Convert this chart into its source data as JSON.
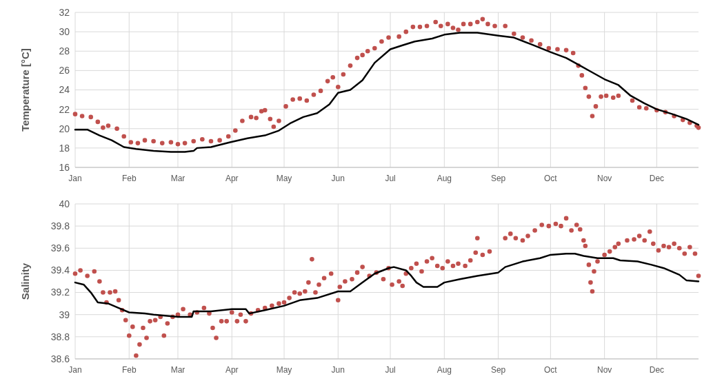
{
  "chart_data": [
    {
      "type": "scatter",
      "ylabel": "Temperature [°C]",
      "xlim": [
        "--01-01",
        "--12-25"
      ],
      "ylim": [
        16,
        32
      ],
      "yticks": [
        16,
        18,
        20,
        22,
        24,
        26,
        28,
        30,
        32
      ],
      "xticks": [
        {
          "value": "--01-01",
          "label": "Jan"
        },
        {
          "value": "--02-01",
          "label": "Feb"
        },
        {
          "value": "--03-01",
          "label": "Mar"
        },
        {
          "value": "--04-01",
          "label": "Apr"
        },
        {
          "value": "--05-01",
          "label": "May"
        },
        {
          "value": "--06-01",
          "label": "Jun"
        },
        {
          "value": "--07-01",
          "label": "Jul"
        },
        {
          "value": "--08-01",
          "label": "Aug"
        },
        {
          "value": "--09-01",
          "label": "Sep"
        },
        {
          "value": "--10-01",
          "label": "Oct"
        },
        {
          "value": "--11-01",
          "label": "Nov"
        },
        {
          "value": "--12-01",
          "label": "Dec"
        }
      ],
      "grid": true,
      "series": [
        {
          "marker": "circle",
          "color": "#c0504d",
          "x": [
            "--01-01",
            "--01-05",
            "--01-10",
            "--01-14",
            "--01-17",
            "--01-20",
            "--01-25",
            "--01-29",
            "--02-02",
            "--02-06",
            "--02-10",
            "--02-15",
            "--02-20",
            "--02-25",
            "--03-01",
            "--03-05",
            "--03-10",
            "--03-15",
            "--03-20",
            "--03-25",
            "--03-30",
            "--04-03",
            "--04-07",
            "--04-12",
            "--04-15",
            "--04-18",
            "--04-20",
            "--04-23",
            "--04-25",
            "--04-28",
            "--05-02",
            "--05-06",
            "--05-10",
            "--05-14",
            "--05-18",
            "--05-22",
            "--05-26",
            "--05-29",
            "--06-01",
            "--06-04",
            "--06-08",
            "--06-12",
            "--06-15",
            "--06-18",
            "--06-22",
            "--06-26",
            "--06-30",
            "--07-06",
            "--07-10",
            "--07-14",
            "--07-18",
            "--07-22",
            "--07-27",
            "--07-30",
            "--08-03",
            "--08-06",
            "--08-09",
            "--08-12",
            "--08-16",
            "--08-20",
            "--08-23",
            "--08-26",
            "--08-30",
            "--09-05",
            "--09-10",
            "--09-15",
            "--09-20",
            "--09-25",
            "--09-30",
            "--10-05",
            "--10-10",
            "--10-14",
            "--10-17",
            "--10-19",
            "--10-21",
            "--10-23",
            "--10-25",
            "--10-27",
            "--10-30",
            "--11-02",
            "--11-06",
            "--11-09",
            "--11-17",
            "--11-21",
            "--11-25",
            "--12-01",
            "--12-06",
            "--12-11",
            "--12-16",
            "--12-20",
            "--12-24",
            "--12-25"
          ],
          "values": [
            21.5,
            21.3,
            21.2,
            20.7,
            20.1,
            20.3,
            20.0,
            19.2,
            18.6,
            18.5,
            18.8,
            18.7,
            18.5,
            18.6,
            18.4,
            18.5,
            18.7,
            18.9,
            18.7,
            18.8,
            19.2,
            19.8,
            20.8,
            21.2,
            21.1,
            21.8,
            21.9,
            21.0,
            20.2,
            20.8,
            22.3,
            23.0,
            23.1,
            22.9,
            23.5,
            23.9,
            24.9,
            25.3,
            24.3,
            25.6,
            26.5,
            27.3,
            27.6,
            28.0,
            28.3,
            29.0,
            29.4,
            29.5,
            30.0,
            30.5,
            30.5,
            30.6,
            31.0,
            30.6,
            30.8,
            30.4,
            30.2,
            30.8,
            30.8,
            31.0,
            31.3,
            30.8,
            30.6,
            30.6,
            29.8,
            29.4,
            29.1,
            28.7,
            28.3,
            28.2,
            28.1,
            27.8,
            26.5,
            25.5,
            24.2,
            23.3,
            21.3,
            22.3,
            23.3,
            23.4,
            23.2,
            23.4,
            22.9,
            22.2,
            22.1,
            21.9,
            21.7,
            21.3,
            20.9,
            20.6,
            20.3,
            20.1
          ]
        },
        {
          "type": "line",
          "color": "#000000",
          "x": [
            "--01-01",
            "--01-08",
            "--01-15",
            "--01-22",
            "--01-29",
            "--02-05",
            "--02-15",
            "--02-25",
            "--03-05",
            "--03-10",
            "--03-12",
            "--03-20",
            "--03-31",
            "--04-10",
            "--04-20",
            "--04-28",
            "--05-05",
            "--05-12",
            "--05-20",
            "--05-27",
            "--06-01",
            "--06-08",
            "--06-15",
            "--06-22",
            "--07-01",
            "--07-08",
            "--07-15",
            "--07-25",
            "--08-01",
            "--08-10",
            "--08-20",
            "--09-01",
            "--09-10",
            "--09-20",
            "--10-01",
            "--10-10",
            "--10-17",
            "--10-24",
            "--11-01",
            "--11-09",
            "--11-16",
            "--11-24",
            "--12-01",
            "--12-10",
            "--12-18",
            "--12-25"
          ],
          "values": [
            19.9,
            19.9,
            19.3,
            18.8,
            18.1,
            17.9,
            17.7,
            17.6,
            17.6,
            17.7,
            18.0,
            18.1,
            18.6,
            19.0,
            19.3,
            19.8,
            20.6,
            21.2,
            21.6,
            22.5,
            23.7,
            24.0,
            25.0,
            26.8,
            28.2,
            28.6,
            29.0,
            29.3,
            29.7,
            29.9,
            29.9,
            29.6,
            29.4,
            28.7,
            27.9,
            27.3,
            26.6,
            25.9,
            25.1,
            24.5,
            23.4,
            22.6,
            22.0,
            21.5,
            21.0,
            20.4
          ]
        }
      ]
    },
    {
      "type": "scatter",
      "ylabel": "Salinity",
      "xlim": [
        "--01-01",
        "--12-25"
      ],
      "ylim": [
        38.6,
        40
      ],
      "yticks": [
        {
          "value": 38.6,
          "label": "38.6"
        },
        {
          "value": 38.8,
          "label": "38.8"
        },
        {
          "value": 39,
          "label": "39"
        },
        {
          "value": 39.2,
          "label": "39.2"
        },
        {
          "value": 39.4,
          "label": "39.4"
        },
        {
          "value": 39.6,
          "label": "39.6"
        },
        {
          "value": 39.8,
          "label": "39.8"
        },
        {
          "value": 40,
          "label": "40"
        }
      ],
      "xticks": [
        {
          "value": "--01-01",
          "label": "Jan"
        },
        {
          "value": "--02-01",
          "label": "Feb"
        },
        {
          "value": "--03-01",
          "label": "Mar"
        },
        {
          "value": "--04-01",
          "label": "Apr"
        },
        {
          "value": "--05-01",
          "label": "May"
        },
        {
          "value": "--06-01",
          "label": "Jun"
        },
        {
          "value": "--07-01",
          "label": "Jul"
        },
        {
          "value": "--08-01",
          "label": "Aug"
        },
        {
          "value": "--09-01",
          "label": "Sep"
        },
        {
          "value": "--10-01",
          "label": "Oct"
        },
        {
          "value": "--11-01",
          "label": "Nov"
        },
        {
          "value": "--12-01",
          "label": "Dec"
        }
      ],
      "grid": true,
      "series": [
        {
          "marker": "circle",
          "color": "#c0504d",
          "x": [
            "--01-01",
            "--01-04",
            "--01-08",
            "--01-12",
            "--01-15",
            "--01-17",
            "--01-19",
            "--01-21",
            "--01-24",
            "--01-26",
            "--01-28",
            "--01-30",
            "--02-01",
            "--02-03",
            "--02-05",
            "--02-07",
            "--02-09",
            "--02-11",
            "--02-13",
            "--02-16",
            "--02-19",
            "--02-21",
            "--02-23",
            "--02-26",
            "--03-01",
            "--03-04",
            "--03-08",
            "--03-12",
            "--03-16",
            "--03-19",
            "--03-21",
            "--03-23",
            "--03-26",
            "--03-29",
            "--04-01",
            "--04-04",
            "--04-06",
            "--04-09",
            "--04-12",
            "--04-16",
            "--04-20",
            "--04-24",
            "--04-28",
            "--05-01",
            "--05-04",
            "--05-07",
            "--05-10",
            "--05-13",
            "--05-15",
            "--05-17",
            "--05-19",
            "--05-21",
            "--05-24",
            "--05-28",
            "--06-01",
            "--06-02",
            "--06-05",
            "--06-09",
            "--06-12",
            "--06-15",
            "--06-19",
            "--06-23",
            "--06-27",
            "--06-30",
            "--07-02",
            "--07-06",
            "--07-08",
            "--07-10",
            "--07-13",
            "--07-16",
            "--07-19",
            "--07-22",
            "--07-25",
            "--07-28",
            "--07-31",
            "--08-03",
            "--08-06",
            "--08-09",
            "--08-13",
            "--08-16",
            "--08-19",
            "--08-20",
            "--08-23",
            "--08-27",
            "--09-05",
            "--09-08",
            "--09-11",
            "--09-15",
            "--09-18",
            "--09-22",
            "--09-26",
            "--09-30",
            "--10-04",
            "--10-07",
            "--10-10",
            "--10-13",
            "--10-16",
            "--10-18",
            "--10-20",
            "--10-21",
            "--10-23",
            "--10-24",
            "--10-25",
            "--10-26",
            "--10-28",
            "--11-01",
            "--11-04",
            "--11-07",
            "--11-09",
            "--11-14",
            "--11-18",
            "--11-21",
            "--11-24",
            "--11-27",
            "--11-29",
            "--12-02",
            "--12-05",
            "--12-08",
            "--12-11",
            "--12-14",
            "--12-17",
            "--12-20",
            "--12-23",
            "--12-25"
          ],
          "values": [
            39.37,
            39.4,
            39.35,
            39.39,
            39.3,
            39.2,
            39.11,
            39.2,
            39.21,
            39.13,
            39.04,
            38.95,
            38.81,
            38.89,
            38.63,
            38.73,
            38.88,
            38.79,
            38.94,
            38.95,
            38.98,
            38.81,
            38.92,
            38.98,
            39.0,
            39.05,
            39.0,
            39.02,
            39.06,
            39.01,
            38.88,
            38.79,
            38.94,
            38.94,
            39.02,
            38.94,
            39.0,
            38.94,
            39.01,
            39.04,
            39.06,
            39.08,
            39.1,
            39.11,
            39.15,
            39.2,
            39.19,
            39.21,
            39.29,
            39.5,
            39.2,
            39.27,
            39.33,
            39.37,
            39.13,
            39.25,
            39.3,
            39.32,
            39.38,
            39.43,
            39.35,
            39.38,
            39.32,
            39.42,
            39.27,
            39.3,
            39.26,
            39.37,
            39.42,
            39.46,
            39.39,
            39.48,
            39.51,
            39.44,
            39.42,
            39.48,
            39.44,
            39.46,
            39.44,
            39.49,
            39.56,
            39.69,
            39.54,
            39.57,
            39.69,
            39.73,
            39.69,
            39.67,
            39.71,
            39.76,
            39.81,
            39.8,
            39.82,
            39.8,
            39.87,
            39.76,
            39.81,
            39.77,
            39.67,
            39.62,
            39.45,
            39.29,
            39.21,
            39.39,
            39.48,
            39.54,
            39.57,
            39.61,
            39.64,
            39.67,
            39.68,
            39.71,
            39.67,
            39.75,
            39.64,
            39.58,
            39.62,
            39.61,
            39.64,
            39.6,
            39.55,
            39.61,
            39.55,
            39.35
          ]
        },
        {
          "type": "line",
          "color": "#000000",
          "x": [
            "--01-01",
            "--01-06",
            "--01-10",
            "--01-14",
            "--01-20",
            "--01-26",
            "--02-01",
            "--02-10",
            "--02-15",
            "--03-01",
            "--03-09",
            "--03-10",
            "--03-20",
            "--04-01",
            "--04-09",
            "--04-11",
            "--04-20",
            "--05-01",
            "--05-10",
            "--05-20",
            "--06-01",
            "--06-08",
            "--06-15",
            "--06-22",
            "--06-30",
            "--07-03",
            "--07-10",
            "--07-13",
            "--07-16",
            "--07-20",
            "--07-28",
            "--08-01",
            "--08-10",
            "--08-20",
            "--09-01",
            "--09-05",
            "--09-15",
            "--09-25",
            "--10-01",
            "--10-10",
            "--10-15",
            "--10-20",
            "--10-28",
            "--11-06",
            "--11-10",
            "--11-20",
            "--11-28",
            "--12-05",
            "--12-14",
            "--12-18",
            "--12-25"
          ],
          "values": [
            39.29,
            39.27,
            39.2,
            39.11,
            39.1,
            39.06,
            39.02,
            39.01,
            39.0,
            38.98,
            38.98,
            39.03,
            39.03,
            39.05,
            39.05,
            39.01,
            39.04,
            39.08,
            39.13,
            39.15,
            39.21,
            39.21,
            39.29,
            39.37,
            39.42,
            39.43,
            39.4,
            39.35,
            39.29,
            39.25,
            39.25,
            39.29,
            39.32,
            39.35,
            39.38,
            39.43,
            39.48,
            39.51,
            39.54,
            39.55,
            39.55,
            39.53,
            39.51,
            39.51,
            39.49,
            39.48,
            39.45,
            39.42,
            39.36,
            39.31,
            39.3
          ]
        }
      ]
    }
  ]
}
